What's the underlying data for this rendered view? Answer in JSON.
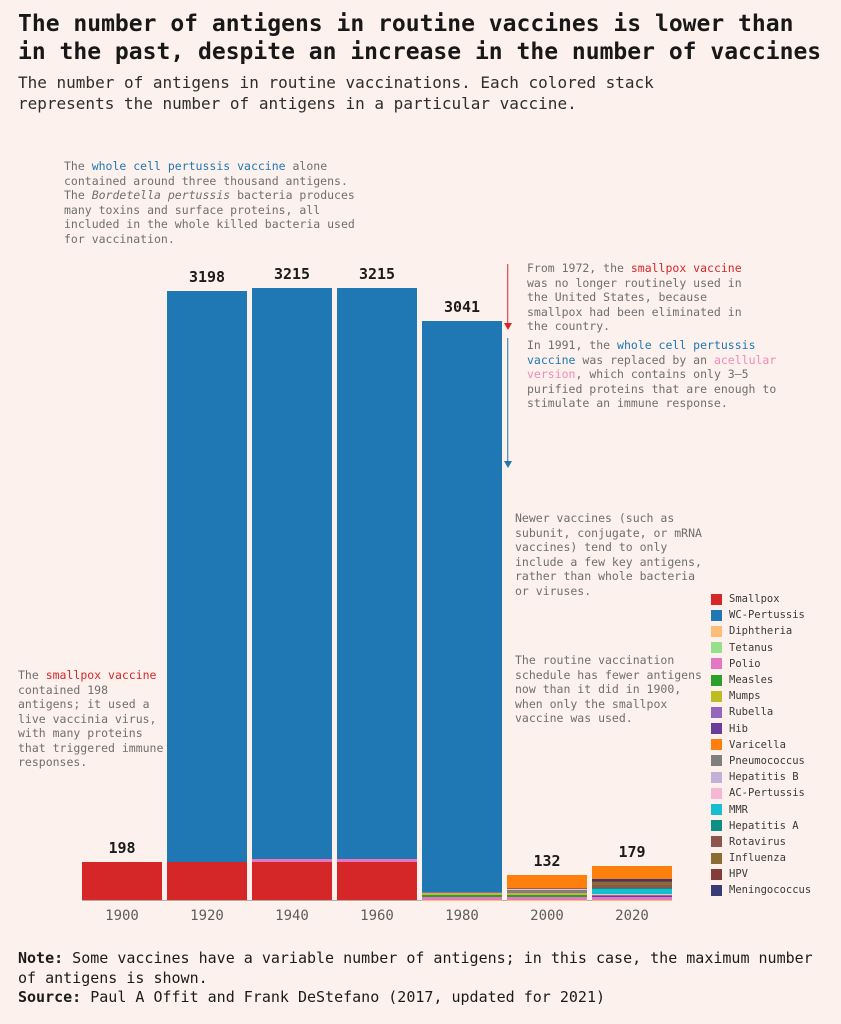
{
  "page": {
    "background": "#fcf1ec",
    "title": "The number of antigens in routine vaccines is lower than in the past, despite an increase in the number of vaccines",
    "subtitle": "The number of antigens in routine vaccinations. Each colored stack represents the number of antigens in a particular vaccine.",
    "note_label": "Note:",
    "note_text": " Some vaccines have a variable number of antigens; in this case, the maximum number of antigens is shown.",
    "source_label": "Source:",
    "source_text": " Paul A Offit and Frank DeStefano (2017, updated for 2021)"
  },
  "colors": {
    "highlight_blue": "#1f77b4",
    "highlight_red": "#d62728",
    "highlight_pink": "#ef8cba",
    "arrow_red": "#d62728",
    "arrow_blue": "#1f77b4"
  },
  "annotations": {
    "wcp": {
      "s1": "The ",
      "s2": "whole cell pertussis vaccine",
      "s3": " alone contained around three thousand antigens. The ",
      "s4": "Bordetella pertussis",
      "s5": " bacteria produces many toxins and surface proteins, all included in the whole killed bacteria used for vaccination."
    },
    "smallpox1972": {
      "s1": "From 1972, the ",
      "s2": "smallpox vaccine",
      "s3": " was no longer routinely used in the United States, because smallpox had been eliminated in the country."
    },
    "acellular1991": {
      "s1": "In 1991, the ",
      "s2": "whole cell pertussis vaccine",
      "s3": " was replaced by an ",
      "s4": "acellular version",
      "s5": ", which contains only 3–5 purified proteins that are enough to stimulate an immune response."
    },
    "newer": "Newer vaccines (such as subunit, conjugate, or mRNA vaccines) tend to only include a few key antigens, rather than whole bacteria or viruses.",
    "schedule": "The routine vaccination schedule has fewer antigens now than it did in 1900, when only the smallpox vaccine was used.",
    "smallpox198": {
      "s1": "The ",
      "s2": "smallpox vaccine",
      "s3": " contained 198 antigens; it used a live vaccinia virus, with many proteins that triggered immune responses."
    }
  },
  "chart_data": {
    "type": "bar",
    "stacked": true,
    "title": "The number of antigens in routine vaccines is lower than in the past, despite an increase in the number of vaccines",
    "xlabel": "",
    "ylabel": "",
    "legend_position": "right",
    "grid": false,
    "ylim": [
      0,
      3215
    ],
    "categories": [
      "1900",
      "1920",
      "1940",
      "1960",
      "1980",
      "2000",
      "2020"
    ],
    "totals": [
      198,
      3198,
      3215,
      3215,
      3041,
      132,
      179
    ],
    "stack_order": [
      "Smallpox",
      "Diphtheria",
      "Tetanus",
      "Polio",
      "Measles",
      "Mumps",
      "Rubella",
      "Hib",
      "Pneumococcus",
      "Hepatitis B",
      "AC-Pertussis",
      "MMR",
      "Hepatitis A",
      "Rotavirus",
      "Influenza",
      "HPV",
      "Meningococcus",
      "Varicella",
      "WC-Pertussis"
    ],
    "series": [
      {
        "name": "Smallpox",
        "color": "#d62728",
        "values": [
          198,
          198,
          198,
          198,
          0,
          0,
          0
        ]
      },
      {
        "name": "WC-Pertussis",
        "color": "#1f77b4",
        "values": [
          0,
          3000,
          3000,
          3000,
          3000,
          0,
          0
        ]
      },
      {
        "name": "Diphtheria",
        "color": "#ffbb78",
        "values": [
          0,
          0,
          1,
          1,
          1,
          1,
          1
        ]
      },
      {
        "name": "Tetanus",
        "color": "#98df8a",
        "values": [
          0,
          0,
          1,
          1,
          1,
          1,
          1
        ]
      },
      {
        "name": "Polio",
        "color": "#e377c2",
        "values": [
          0,
          0,
          15,
          15,
          15,
          15,
          15
        ]
      },
      {
        "name": "Measles",
        "color": "#2ca02c",
        "values": [
          0,
          0,
          0,
          0,
          10,
          10,
          0
        ]
      },
      {
        "name": "Mumps",
        "color": "#bcbd22",
        "values": [
          0,
          0,
          0,
          0,
          9,
          9,
          0
        ]
      },
      {
        "name": "Rubella",
        "color": "#9467bd",
        "values": [
          0,
          0,
          0,
          0,
          5,
          5,
          0
        ]
      },
      {
        "name": "Hib",
        "color": "#6a3d9a",
        "values": [
          0,
          0,
          0,
          0,
          0,
          2,
          2
        ]
      },
      {
        "name": "Varicella",
        "color": "#ff7f0e",
        "values": [
          0,
          0,
          0,
          0,
          0,
          69,
          69
        ]
      },
      {
        "name": "Pneumococcus",
        "color": "#7f7f7f",
        "values": [
          0,
          0,
          0,
          0,
          0,
          8,
          8
        ]
      },
      {
        "name": "Hepatitis B",
        "color": "#c5b0d5",
        "values": [
          0,
          0,
          0,
          0,
          0,
          1,
          1
        ]
      },
      {
        "name": "AC-Pertussis",
        "color": "#f7b6d2",
        "values": [
          0,
          0,
          0,
          0,
          0,
          5,
          5
        ]
      },
      {
        "name": "MMR",
        "color": "#17becf",
        "values": [
          0,
          0,
          0,
          0,
          0,
          0,
          24
        ]
      },
      {
        "name": "Hepatitis A",
        "color": "#0e8f84",
        "values": [
          0,
          0,
          0,
          0,
          0,
          0,
          4
        ]
      },
      {
        "name": "Rotavirus",
        "color": "#8c564b",
        "values": [
          0,
          0,
          0,
          0,
          0,
          0,
          16
        ]
      },
      {
        "name": "Influenza",
        "color": "#8c6d31",
        "values": [
          0,
          0,
          0,
          0,
          0,
          6,
          16
        ]
      },
      {
        "name": "HPV",
        "color": "#843c39",
        "values": [
          0,
          0,
          0,
          0,
          0,
          0,
          9
        ]
      },
      {
        "name": "Meningococcus",
        "color": "#393b79",
        "values": [
          0,
          0,
          0,
          0,
          0,
          0,
          8
        ]
      }
    ]
  }
}
